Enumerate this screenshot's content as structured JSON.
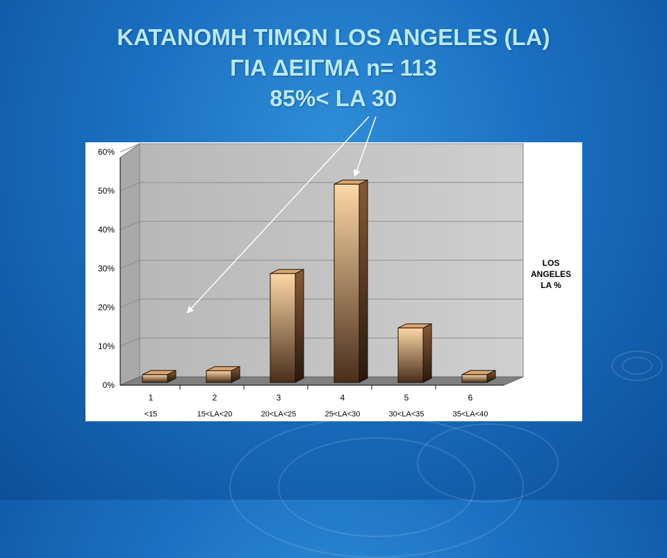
{
  "slide": {
    "title_lines": [
      "ΚΑΤΑΝΟΜΗ ΤΙΜΩΝ LOS ANGELES (LA)",
      "ΓΙΑ ΔΕΙΓΜΑ n= 113",
      "85%< LA 30"
    ]
  },
  "colors": {
    "background": "#1a6fc0",
    "title": "#b8e9f7",
    "bar_light": "#fcd7a6",
    "bar_dark": "#4a2e1b",
    "wall": "#c0c0c0",
    "floor": "#808080",
    "arrow": "#ffffff"
  },
  "chart_data": {
    "type": "bar",
    "style": "3d-column",
    "categories": [
      "1",
      "2",
      "3",
      "4",
      "5",
      "6"
    ],
    "category_labels": [
      "<15",
      "15<LA<20",
      "20<LA<25",
      "25<LA<30",
      "30<LA<35",
      "35<LA<40"
    ],
    "series": [
      {
        "name": "LOS ANGELES LA %",
        "values": [
          2,
          3,
          28,
          51,
          14,
          2
        ]
      }
    ],
    "legend_lines": [
      "LOS",
      "ANGELES",
      "LA %"
    ],
    "ylim": [
      0,
      60
    ],
    "yticks": [
      "0%",
      "10%",
      "20%",
      "30%",
      "40%",
      "50%",
      "60%"
    ],
    "grid": true,
    "legend_position": "right"
  }
}
